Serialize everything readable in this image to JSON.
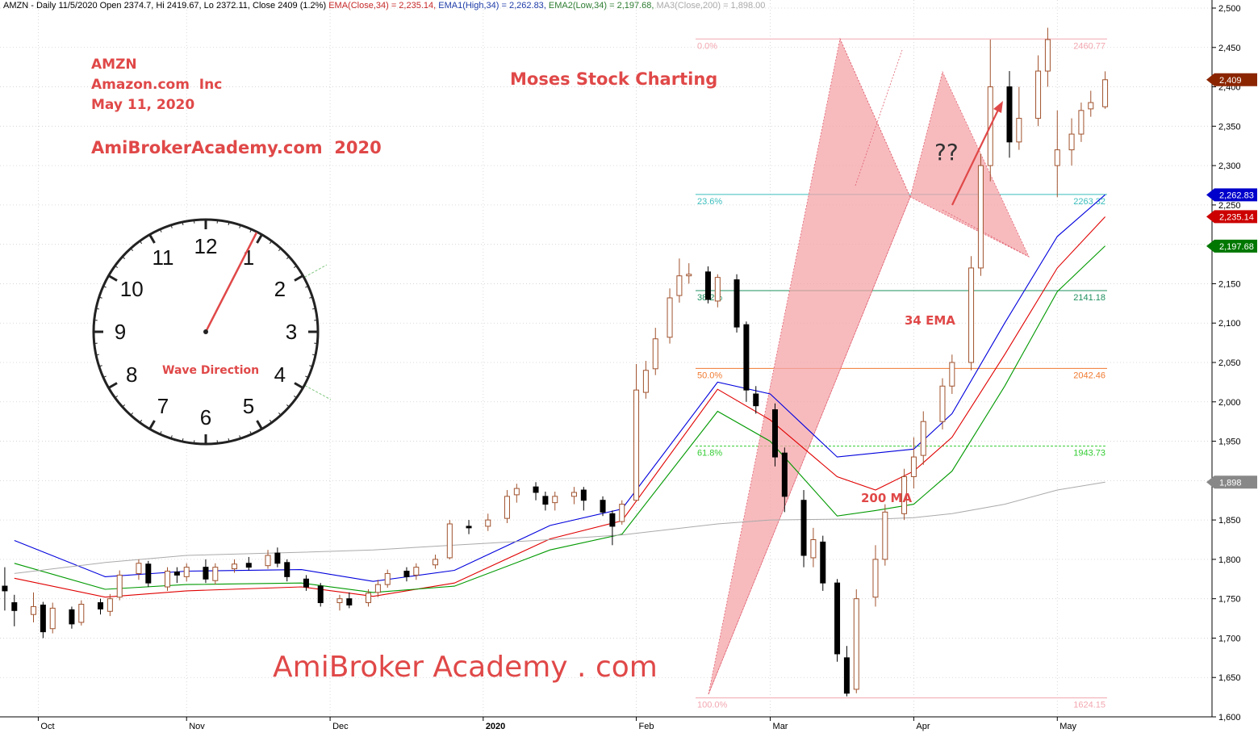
{
  "header": {
    "symbol_line": "AMZN - Daily 11/5/2020 Open 2374.7, Hi 2419.67, Lo 2372.11, Close 2409 (1.2%)",
    "ema_close": "EMA(Close,34) = 2,235.14,",
    "ema_high": "EMA1(High,34) = 2,262.83,",
    "ema_low": "EMA2(Low,34) = 2,197.68,",
    "ma_close": "MA3(Close,200) = 1,898.00"
  },
  "notes": {
    "ticker": "AMZN",
    "company": "Amazon.com  Inc",
    "date": "May 11, 2020",
    "site": "AmiBrokerAcademy.com  2020",
    "brand": "Moses Stock Charting",
    "watermark": "AmiBroker Academy . com",
    "question": "??",
    "ema_label": "34 EMA",
    "ma_label": "200 MA",
    "clock_caption": "Wave Direction"
  },
  "clock": {
    "numerals": [
      "12",
      "1",
      "2",
      "3",
      "4",
      "5",
      "6",
      "7",
      "8",
      "9",
      "10",
      "11"
    ]
  },
  "colors": {
    "candle_up_edge": "#a0522d",
    "candle_down": "#000000",
    "ema_close": "#e00000",
    "ema_high": "#0000dd",
    "ema_low": "#009900",
    "ma200": "#aaaaaa",
    "pattern_fill": "#f4a4a8",
    "annotation_red": "#e04848"
  },
  "chart_data": {
    "type": "candlestick",
    "title": "AMZN - Daily 11/5/2020",
    "y_range": [
      1600,
      2500
    ],
    "y_ticks": [
      "2,500",
      "2,450",
      "2,400",
      "2,350",
      "2,300",
      "2,250",
      "2,200",
      "2,150",
      "2,100",
      "2,050",
      "2,000",
      "1,950",
      "1,900",
      "1,850",
      "1,800",
      "1,750",
      "1,700",
      "1,650",
      "1,600"
    ],
    "y_tick_values": [
      2500,
      2450,
      2400,
      2350,
      2300,
      2250,
      2200,
      2150,
      2100,
      2050,
      2000,
      1950,
      1900,
      1850,
      1800,
      1750,
      1700,
      1650,
      1600
    ],
    "x_labels": [
      "Oct",
      "Nov",
      "Dec",
      "2020",
      "Feb",
      "Mar",
      "Apr",
      "May"
    ],
    "x_label_dates": [
      "2019-10-01",
      "2019-11-01",
      "2019-12-01",
      "2020-01-02",
      "2020-02-03",
      "2020-03-02",
      "2020-04-01",
      "2020-05-01"
    ],
    "last_price": {
      "label": "2,409",
      "value": 2409
    },
    "price_tags": [
      {
        "label": "2,409",
        "value": 2409,
        "color": "#8b2500"
      },
      {
        "label": "2,262.83",
        "value": 2262.83,
        "color": "#0000cc"
      },
      {
        "label": "2,235.14",
        "value": 2235.14,
        "color": "#cc0000"
      },
      {
        "label": "2,197.68",
        "value": 2197.68,
        "color": "#007700"
      },
      {
        "label": "1,898",
        "value": 1898,
        "color": "#888888"
      }
    ],
    "fibonacci": [
      {
        "ratio": "0.0%",
        "price": "2460.77",
        "value": 2460.77,
        "color": "#f2a7b0"
      },
      {
        "ratio": "23.6%",
        "price": "2263.32",
        "value": 2263.32,
        "color": "#3bbdbd"
      },
      {
        "ratio": "38.2%",
        "price": "2141.18",
        "value": 2141.18,
        "color": "#1f8f5f"
      },
      {
        "ratio": "50.0%",
        "price": "2042.46",
        "value": 2042.46,
        "color": "#f07a30"
      },
      {
        "ratio": "61.8%",
        "price": "1943.73",
        "value": 1943.73,
        "color": "#33cc33"
      },
      {
        "ratio": "100.0%",
        "price": "1624.15",
        "value": 1624.15,
        "color": "#f2a7b0"
      }
    ],
    "series": [
      {
        "name": "EMA(Close,34)",
        "color": "#e00000",
        "points": [
          [
            "2019-09-26",
            1776
          ],
          [
            "2019-10-15",
            1752
          ],
          [
            "2019-11-01",
            1760
          ],
          [
            "2019-11-25",
            1765
          ],
          [
            "2019-12-10",
            1753
          ],
          [
            "2019-12-27",
            1770
          ],
          [
            "2020-01-16",
            1826
          ],
          [
            "2020-01-31",
            1849
          ],
          [
            "2020-02-20",
            2016
          ],
          [
            "2020-03-02",
            1977
          ],
          [
            "2020-03-16",
            1905
          ],
          [
            "2020-03-24",
            1888
          ],
          [
            "2020-04-01",
            1912
          ],
          [
            "2020-04-09",
            1955
          ],
          [
            "2020-04-20",
            2060
          ],
          [
            "2020-05-01",
            2170
          ],
          [
            "2020-05-11",
            2235
          ]
        ]
      },
      {
        "name": "EMA1(High,34)",
        "color": "#0000dd",
        "points": [
          [
            "2019-09-26",
            1824
          ],
          [
            "2019-10-15",
            1778
          ],
          [
            "2019-11-01",
            1785
          ],
          [
            "2019-11-25",
            1787
          ],
          [
            "2019-12-10",
            1772
          ],
          [
            "2019-12-27",
            1786
          ],
          [
            "2020-01-16",
            1843
          ],
          [
            "2020-01-31",
            1864
          ],
          [
            "2020-02-20",
            2025
          ],
          [
            "2020-03-02",
            2010
          ],
          [
            "2020-03-16",
            1930
          ],
          [
            "2020-03-24",
            1935
          ],
          [
            "2020-04-01",
            1940
          ],
          [
            "2020-04-09",
            1985
          ],
          [
            "2020-04-20",
            2100
          ],
          [
            "2020-05-01",
            2210
          ],
          [
            "2020-05-11",
            2263
          ]
        ]
      },
      {
        "name": "EMA2(Low,34)",
        "color": "#009900",
        "points": [
          [
            "2019-09-26",
            1795
          ],
          [
            "2019-10-15",
            1762
          ],
          [
            "2019-11-01",
            1768
          ],
          [
            "2019-11-25",
            1770
          ],
          [
            "2019-12-10",
            1758
          ],
          [
            "2019-12-27",
            1766
          ],
          [
            "2020-01-16",
            1812
          ],
          [
            "2020-01-31",
            1832
          ],
          [
            "2020-02-20",
            1988
          ],
          [
            "2020-03-02",
            1950
          ],
          [
            "2020-03-16",
            1855
          ],
          [
            "2020-03-24",
            1862
          ],
          [
            "2020-04-01",
            1870
          ],
          [
            "2020-04-09",
            1912
          ],
          [
            "2020-04-20",
            2020
          ],
          [
            "2020-05-01",
            2140
          ],
          [
            "2020-05-11",
            2198
          ]
        ]
      },
      {
        "name": "MA3(Close,200)",
        "color": "#aaaaaa",
        "points": [
          [
            "2019-09-26",
            1782
          ],
          [
            "2019-10-15",
            1796
          ],
          [
            "2019-11-01",
            1805
          ],
          [
            "2019-11-25",
            1809
          ],
          [
            "2019-12-10",
            1812
          ],
          [
            "2019-12-27",
            1818
          ],
          [
            "2020-01-16",
            1825
          ],
          [
            "2020-01-31",
            1831
          ],
          [
            "2020-02-20",
            1845
          ],
          [
            "2020-03-02",
            1850
          ],
          [
            "2020-03-16",
            1851
          ],
          [
            "2020-03-24",
            1851
          ],
          [
            "2020-04-01",
            1853
          ],
          [
            "2020-04-09",
            1858
          ],
          [
            "2020-04-20",
            1870
          ],
          [
            "2020-05-01",
            1888
          ],
          [
            "2020-05-11",
            1898
          ]
        ]
      }
    ],
    "candles": [
      [
        "2019-09-24",
        1766,
        1760,
        1790,
        1735
      ],
      [
        "2019-09-26",
        1745,
        1735,
        1755,
        1715
      ],
      [
        "2019-09-30",
        1730,
        1740,
        1758,
        1720
      ],
      [
        "2019-10-02",
        1742,
        1708,
        1746,
        1700
      ],
      [
        "2019-10-04",
        1712,
        1738,
        1745,
        1706
      ],
      [
        "2019-10-08",
        1736,
        1718,
        1740,
        1712
      ],
      [
        "2019-10-10",
        1720,
        1743,
        1748,
        1716
      ],
      [
        "2019-10-14",
        1745,
        1737,
        1750,
        1730
      ],
      [
        "2019-10-16",
        1734,
        1750,
        1756,
        1728
      ],
      [
        "2019-10-18",
        1752,
        1780,
        1786,
        1748
      ],
      [
        "2019-10-22",
        1782,
        1795,
        1800,
        1774
      ],
      [
        "2019-10-24",
        1794,
        1770,
        1798,
        1765
      ],
      [
        "2019-10-28",
        1765,
        1785,
        1790,
        1760
      ],
      [
        "2019-10-30",
        1784,
        1780,
        1790,
        1770
      ],
      [
        "2019-11-01",
        1778,
        1790,
        1795,
        1772
      ],
      [
        "2019-11-05",
        1790,
        1775,
        1800,
        1770
      ],
      [
        "2019-11-07",
        1773,
        1790,
        1795,
        1768
      ],
      [
        "2019-11-11",
        1788,
        1794,
        1800,
        1783
      ],
      [
        "2019-11-14",
        1795,
        1790,
        1803,
        1786
      ],
      [
        "2019-11-18",
        1792,
        1805,
        1812,
        1788
      ],
      [
        "2019-11-20",
        1808,
        1795,
        1815,
        1790
      ],
      [
        "2019-11-22",
        1796,
        1778,
        1800,
        1772
      ],
      [
        "2019-11-26",
        1775,
        1765,
        1780,
        1760
      ],
      [
        "2019-11-29",
        1766,
        1745,
        1770,
        1740
      ],
      [
        "2019-12-03",
        1745,
        1750,
        1755,
        1735
      ],
      [
        "2019-12-05",
        1750,
        1742,
        1758,
        1738
      ],
      [
        "2019-12-09",
        1745,
        1757,
        1762,
        1740
      ],
      [
        "2019-12-11",
        1758,
        1768,
        1774,
        1752
      ],
      [
        "2019-12-13",
        1768,
        1782,
        1787,
        1764
      ],
      [
        "2019-12-17",
        1785,
        1778,
        1790,
        1772
      ],
      [
        "2019-12-19",
        1780,
        1790,
        1795,
        1774
      ],
      [
        "2019-12-23",
        1793,
        1800,
        1806,
        1788
      ],
      [
        "2019-12-26",
        1802,
        1845,
        1850,
        1800
      ],
      [
        "2019-12-30",
        1842,
        1840,
        1850,
        1832
      ],
      [
        "2020-01-03",
        1842,
        1850,
        1858,
        1836
      ],
      [
        "2020-01-07",
        1852,
        1880,
        1888,
        1846
      ],
      [
        "2020-01-09",
        1882,
        1890,
        1896,
        1872
      ],
      [
        "2020-01-13",
        1892,
        1885,
        1898,
        1875
      ],
      [
        "2020-01-15",
        1880,
        1870,
        1886,
        1862
      ],
      [
        "2020-01-17",
        1872,
        1880,
        1886,
        1862
      ],
      [
        "2020-01-21",
        1880,
        1885,
        1892,
        1870
      ],
      [
        "2020-01-23",
        1888,
        1875,
        1892,
        1862
      ],
      [
        "2020-01-27",
        1875,
        1860,
        1880,
        1855
      ],
      [
        "2020-01-29",
        1858,
        1842,
        1862,
        1818
      ],
      [
        "2020-01-31",
        1848,
        1870,
        1875,
        1844
      ],
      [
        "2020-02-03",
        1875,
        2015,
        2048,
        1998
      ],
      [
        "2020-02-05",
        2012,
        2040,
        2052,
        2004
      ],
      [
        "2020-02-07",
        2042,
        2080,
        2094,
        2034
      ],
      [
        "2020-02-10",
        2082,
        2132,
        2144,
        2074
      ],
      [
        "2020-02-12",
        2135,
        2160,
        2182,
        2126
      ],
      [
        "2020-02-14",
        2160,
        2162,
        2176,
        2150
      ],
      [
        "2020-02-18",
        2165,
        2130,
        2172,
        2125
      ],
      [
        "2020-02-20",
        2128,
        2158,
        2162,
        2120
      ],
      [
        "2020-02-24",
        2155,
        2095,
        2162,
        2088
      ],
      [
        "2020-02-26",
        2098,
        2015,
        2102,
        2000
      ],
      [
        "2020-02-28",
        2010,
        1995,
        2020,
        1985
      ],
      [
        "2020-03-03",
        1990,
        1930,
        1998,
        1918
      ],
      [
        "2020-03-05",
        1935,
        1880,
        1942,
        1860
      ],
      [
        "2020-03-09",
        1875,
        1805,
        1888,
        1790
      ],
      [
        "2020-03-11",
        1802,
        1825,
        1840,
        1790
      ],
      [
        "2020-03-13",
        1822,
        1770,
        1830,
        1760
      ],
      [
        "2020-03-16",
        1770,
        1680,
        1775,
        1670
      ],
      [
        "2020-03-18",
        1675,
        1630,
        1690,
        1626
      ],
      [
        "2020-03-20",
        1635,
        1750,
        1762,
        1630
      ],
      [
        "2020-03-24",
        1752,
        1800,
        1818,
        1740
      ],
      [
        "2020-03-26",
        1800,
        1860,
        1870,
        1792
      ],
      [
        "2020-03-30",
        1858,
        1905,
        1915,
        1850
      ],
      [
        "2020-04-01",
        1905,
        1930,
        1955,
        1890
      ],
      [
        "2020-04-03",
        1932,
        1975,
        1988,
        1920
      ],
      [
        "2020-04-07",
        1975,
        2020,
        2030,
        1965
      ],
      [
        "2020-04-09",
        2020,
        2050,
        2060,
        2010
      ],
      [
        "2020-04-13",
        2050,
        2170,
        2185,
        2040
      ],
      [
        "2020-04-15",
        2170,
        2300,
        2315,
        2160
      ],
      [
        "2020-04-17",
        2300,
        2400,
        2460,
        2280
      ],
      [
        "2020-04-21",
        2400,
        2330,
        2420,
        2310
      ],
      [
        "2020-04-23",
        2330,
        2360,
        2400,
        2320
      ],
      [
        "2020-04-27",
        2360,
        2420,
        2440,
        2350
      ],
      [
        "2020-04-29",
        2420,
        2460,
        2475,
        2400
      ],
      [
        "2020-05-01",
        2300,
        2320,
        2370,
        2260
      ],
      [
        "2020-05-04",
        2320,
        2340,
        2360,
        2300
      ],
      [
        "2020-05-06",
        2340,
        2370,
        2380,
        2330
      ],
      [
        "2020-05-08",
        2372,
        2380,
        2395,
        2362
      ],
      [
        "2020-05-11",
        2374.7,
        2409,
        2419.67,
        2372.11
      ]
    ],
    "x_range": [
      "2019-09-23",
      "2020-06-02"
    ]
  }
}
